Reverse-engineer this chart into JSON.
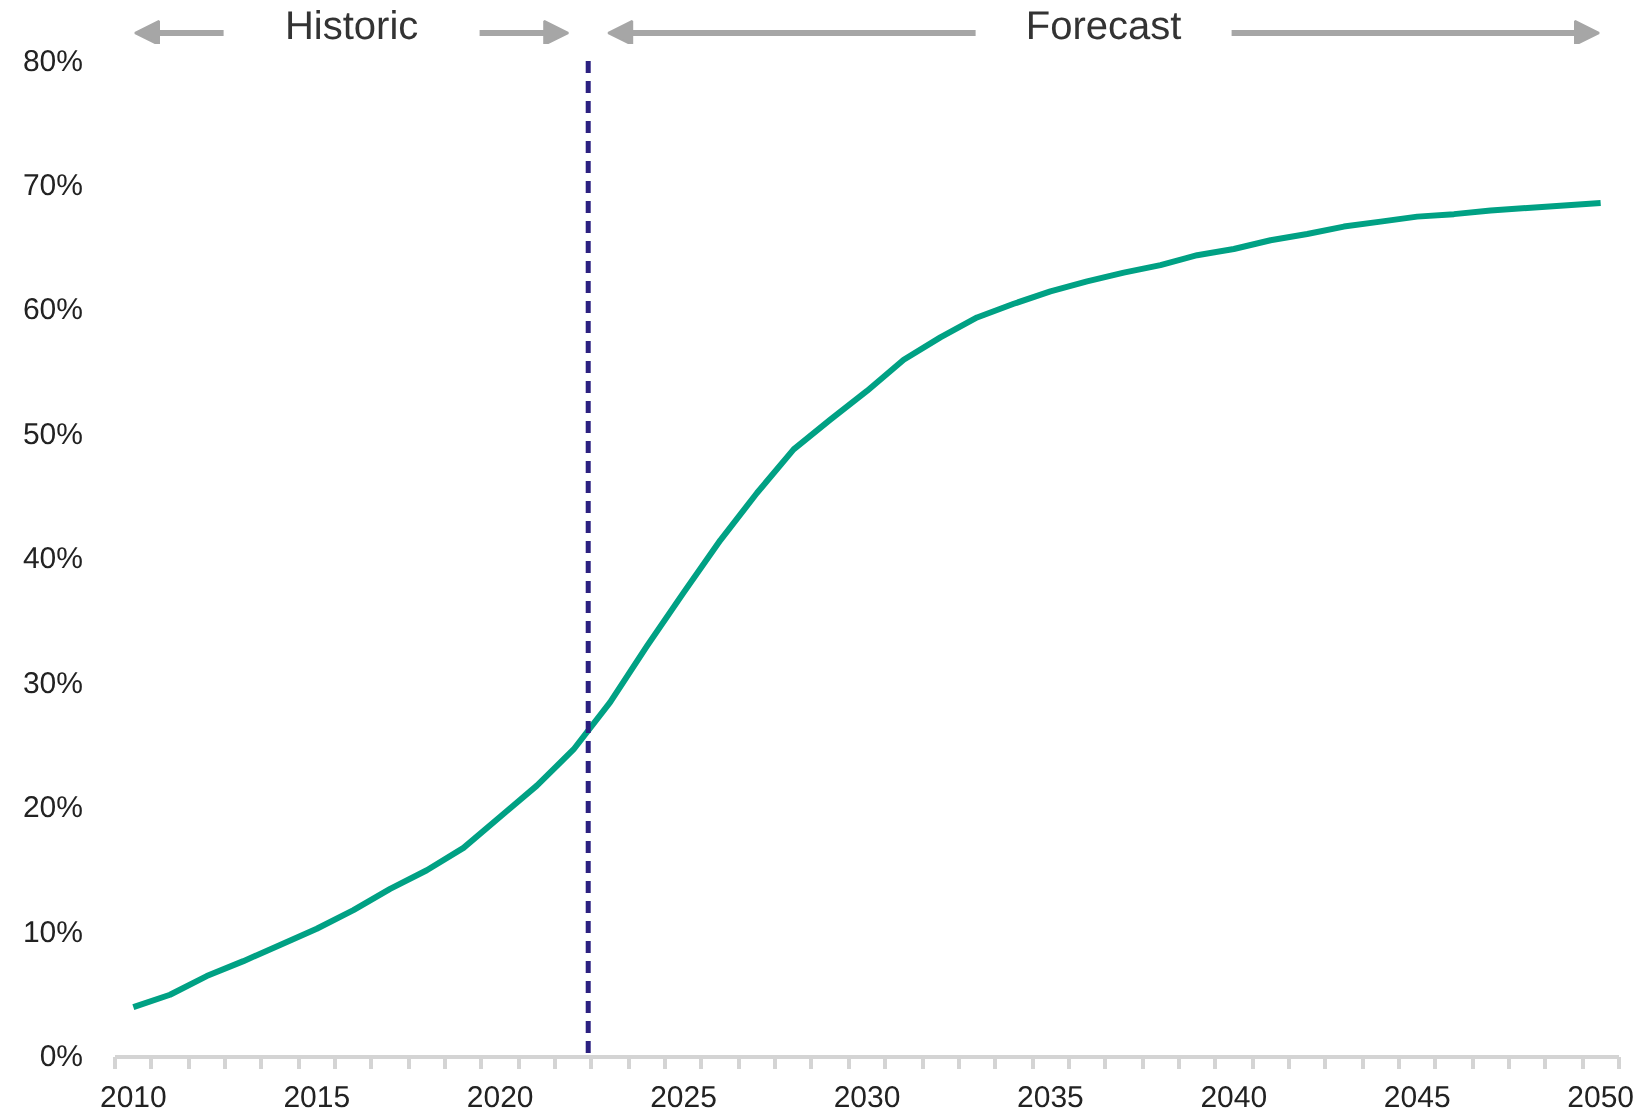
{
  "chart_data": {
    "type": "line",
    "annotations": [
      "Historic",
      "Forecast"
    ],
    "x": [
      2010,
      2011,
      2012,
      2013,
      2014,
      2015,
      2016,
      2017,
      2018,
      2019,
      2020,
      2021,
      2022,
      2023,
      2024,
      2025,
      2026,
      2027,
      2028,
      2029,
      2030,
      2031,
      2032,
      2033,
      2034,
      2035,
      2036,
      2037,
      2038,
      2039,
      2040,
      2041,
      2042,
      2043,
      2044,
      2045,
      2046,
      2047,
      2048,
      2049,
      2050
    ],
    "series": [
      {
        "color": "#00a184",
        "values": [
          4.0,
          5.0,
          6.5,
          7.7,
          9.0,
          10.3,
          11.8,
          13.5,
          15.0,
          16.8,
          19.3,
          21.8,
          24.7,
          28.5,
          33.0,
          37.3,
          41.5,
          45.3,
          48.8,
          51.2,
          53.5,
          56.0,
          57.8,
          59.4,
          60.5,
          61.5,
          62.3,
          63.0,
          63.6,
          64.4,
          64.9,
          65.6,
          66.1,
          66.7,
          67.1,
          67.5,
          67.7,
          68.0,
          68.2,
          68.4,
          68.6
        ]
      }
    ],
    "xlim": [
      2009.5,
      2050.5
    ],
    "xticks": [
      2010,
      2015,
      2020,
      2025,
      2030,
      2035,
      2040,
      2045,
      2050,
      {
        "value": 2009.5,
        "label": null
      },
      {
        "value": 2010.5,
        "label": null
      },
      {
        "value": 2011.5,
        "label": null
      },
      {
        "value": 2012.5,
        "label": null
      },
      {
        "value": 2013.5,
        "label": null
      },
      {
        "value": 2014.5,
        "label": null
      },
      {
        "value": 2015.5,
        "label": null
      },
      {
        "value": 2016.5,
        "label": null
      },
      {
        "value": 2017.5,
        "label": null
      },
      {
        "value": 2018.5,
        "label": null
      },
      {
        "value": 2019.5,
        "label": null
      },
      {
        "value": 2020.5,
        "label": null
      },
      {
        "value": 2021.5,
        "label": null
      },
      {
        "value": 2022.5,
        "label": null
      },
      {
        "value": 2023.5,
        "label": null
      },
      {
        "value": 2024.5,
        "label": null
      },
      {
        "value": 2025.5,
        "label": null
      },
      {
        "value": 2026.5,
        "label": null
      },
      {
        "value": 2027.5,
        "label": null
      },
      {
        "value": 2028.5,
        "label": null
      },
      {
        "value": 2029.5,
        "label": null
      },
      {
        "value": 2030.5,
        "label": null
      },
      {
        "value": 2031.5,
        "label": null
      },
      {
        "value": 2032.5,
        "label": null
      },
      {
        "value": 2033.5,
        "label": null
      },
      {
        "value": 2034.5,
        "label": null
      },
      {
        "value": 2035.5,
        "label": null
      },
      {
        "value": 2036.5,
        "label": null
      },
      {
        "value": 2037.5,
        "label": null
      },
      {
        "value": 2038.5,
        "label": null
      },
      {
        "value": 2039.5,
        "label": null
      },
      {
        "value": 2040.5,
        "label": null
      },
      {
        "value": 2041.5,
        "label": null
      },
      {
        "value": 2042.5,
        "label": null
      },
      {
        "value": 2043.5,
        "label": null
      },
      {
        "value": 2044.5,
        "label": null
      },
      {
        "value": 2045.5,
        "label": null
      },
      {
        "value": 2046.5,
        "label": null
      },
      {
        "value": 2047.5,
        "label": null
      },
      {
        "value": 2048.5,
        "label": null
      },
      {
        "value": 2049.5,
        "label": null
      },
      {
        "value": 2050.5,
        "label": null
      }
    ],
    "ylim": [
      0,
      80
    ],
    "yticks": [
      {
        "value": 0,
        "label": "0%"
      },
      {
        "value": 10,
        "label": "10%"
      },
      {
        "value": 20,
        "label": "20%"
      },
      {
        "value": 30,
        "label": "30%"
      },
      {
        "value": 40,
        "label": "40%"
      },
      {
        "value": 50,
        "label": "50%"
      },
      {
        "value": 60,
        "label": "60%"
      },
      {
        "value": 70,
        "label": "70%"
      },
      {
        "value": 80,
        "label": "80%"
      }
    ],
    "ref_lines": [
      {
        "axis": "x",
        "value": 2022.4,
        "color": "#2b2080",
        "line_style": "dashed"
      }
    ],
    "grid": false
  }
}
